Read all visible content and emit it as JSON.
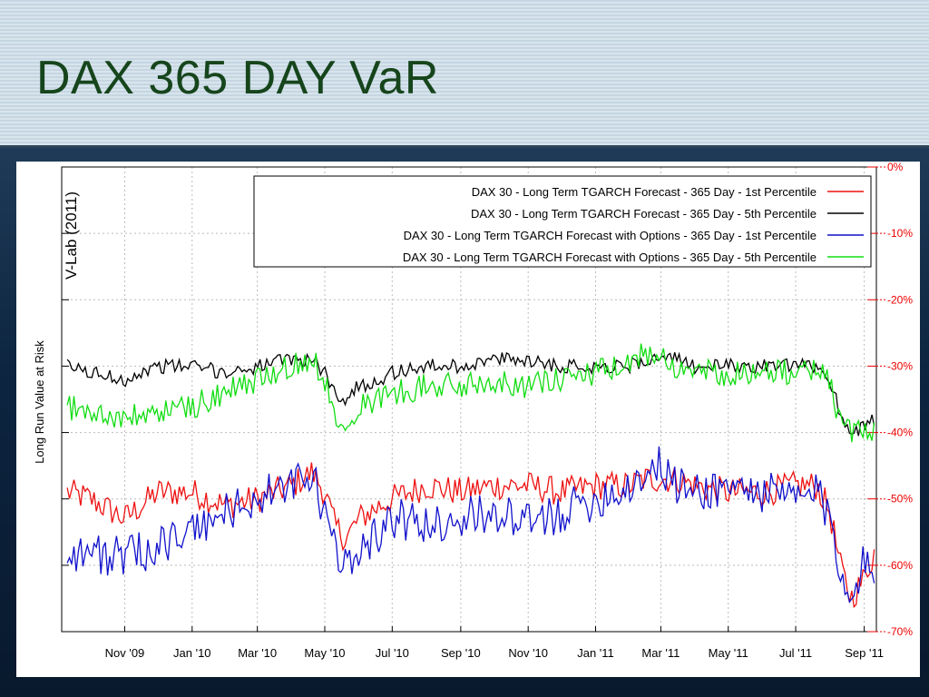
{
  "slide": {
    "title": "DAX 365 DAY VaR"
  },
  "chart_data": {
    "type": "line",
    "watermark": "V-Lab (2011)",
    "ylabel": "Long Run Value at Risk",
    "xlabel": "",
    "ylim": [
      -70,
      0
    ],
    "y_ticks": [
      "0%",
      "-10%",
      "-20%",
      "-30%",
      "-40%",
      "-50%",
      "-60%",
      "-70%"
    ],
    "x_ticks": [
      "Nov '09",
      "Jan '10",
      "Mar '10",
      "May '10",
      "Jul '10",
      "Sep '10",
      "Nov '10",
      "Jan '11",
      "Mar '11",
      "May '11",
      "Jul '11",
      "Sep '11"
    ],
    "grid": true,
    "legend_position": "top-right",
    "x_dates": [
      "2009-09-10",
      "2009-10-01",
      "2009-11-01",
      "2009-12-01",
      "2010-01-01",
      "2010-02-01",
      "2010-03-01",
      "2010-04-01",
      "2010-04-20",
      "2010-05-01",
      "2010-05-10",
      "2010-05-20",
      "2010-06-01",
      "2010-06-20",
      "2010-07-01",
      "2010-08-01",
      "2010-09-01",
      "2010-10-01",
      "2010-11-01",
      "2010-12-01",
      "2011-01-01",
      "2011-02-01",
      "2011-02-15",
      "2011-03-01",
      "2011-03-15",
      "2011-04-01",
      "2011-05-01",
      "2011-06-01",
      "2011-07-01",
      "2011-07-20",
      "2011-08-01",
      "2011-08-10",
      "2011-08-20",
      "2011-09-01",
      "2011-09-10"
    ],
    "series": [
      {
        "name": "DAX 30 - Long Term TGARCH Forecast - 365 Day - 1st Percentile",
        "color": "#ee1111",
        "values": [
          -49,
          -50,
          -53,
          -49,
          -49,
          -51,
          -50,
          -48,
          -46,
          -49,
          -54,
          -56,
          -53,
          -51,
          -50,
          -48,
          -49,
          -48,
          -48,
          -49,
          -48,
          -48,
          -47,
          -47,
          -47,
          -48,
          -49,
          -49,
          -48,
          -48,
          -52,
          -60,
          -65,
          -62,
          -58
        ]
      },
      {
        "name": "DAX 30 - Long Term TGARCH Forecast - 365 Day - 5th Percentile",
        "color": "#000000",
        "values": [
          -30,
          -31,
          -32,
          -30,
          -30,
          -31,
          -30,
          -29,
          -29,
          -31,
          -34,
          -35,
          -33,
          -32,
          -31,
          -30,
          -30,
          -29,
          -29,
          -30,
          -30,
          -30,
          -29,
          -29,
          -29,
          -30,
          -30,
          -30,
          -30,
          -30,
          -32,
          -37,
          -40,
          -39,
          -38
        ]
      },
      {
        "name": "DAX 30 - Long Term TGARCH Forecast with Options - 365 Day - 1st Percentile",
        "color": "#1111cc",
        "values": [
          -58,
          -58,
          -59,
          -57,
          -55,
          -52,
          -50,
          -48,
          -47,
          -52,
          -58,
          -60,
          -57,
          -55,
          -53,
          -54,
          -53,
          -52,
          -54,
          -52,
          -50,
          -48,
          -46,
          -45,
          -48,
          -49,
          -48,
          -49,
          -50,
          -49,
          -53,
          -61,
          -63,
          -60,
          -62
        ]
      },
      {
        "name": "DAX 30 - Long Term TGARCH Forecast with Options - 365 Day - 5th Percentile",
        "color": "#11dd11",
        "values": [
          -36,
          -37,
          -38,
          -37,
          -36,
          -34,
          -32,
          -30,
          -29,
          -32,
          -37,
          -38,
          -36,
          -35,
          -34,
          -33,
          -33,
          -32,
          -33,
          -32,
          -31,
          -30,
          -28,
          -28,
          -30,
          -31,
          -31,
          -31,
          -31,
          -30,
          -33,
          -38,
          -40,
          -39,
          -40
        ]
      }
    ]
  }
}
